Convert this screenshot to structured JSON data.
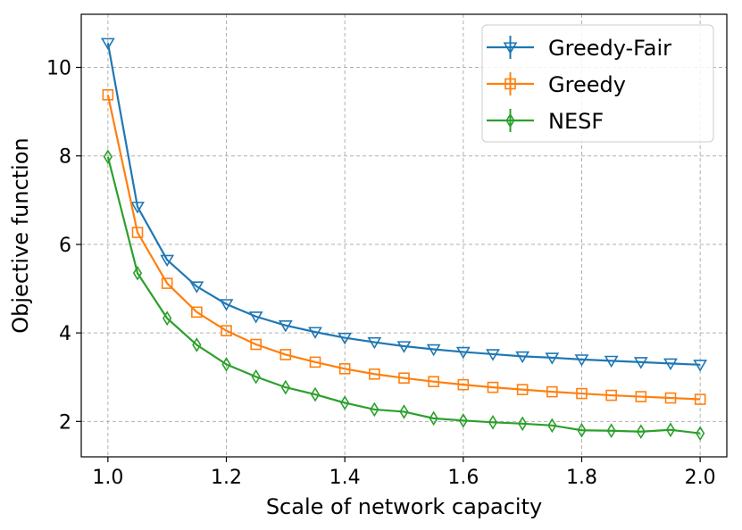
{
  "chart_data": {
    "type": "line",
    "xlabel": "Scale of network capacity",
    "ylabel": "Objective function",
    "xlim": [
      0.955,
      2.045
    ],
    "ylim": [
      1.2,
      11.2
    ],
    "xticks": [
      1.0,
      1.2,
      1.4,
      1.6,
      1.8,
      2.0
    ],
    "xtick_labels": [
      "1.0",
      "1.2",
      "1.4",
      "1.6",
      "1.8",
      "2.0"
    ],
    "yticks": [
      2,
      4,
      6,
      8,
      10
    ],
    "ytick_labels": [
      "2",
      "4",
      "6",
      "8",
      "10"
    ],
    "grid": true,
    "legend_position": "top-right",
    "x": [
      1.0,
      1.05,
      1.1,
      1.15,
      1.2,
      1.25,
      1.3,
      1.35,
      1.4,
      1.45,
      1.5,
      1.55,
      1.6,
      1.65,
      1.7,
      1.75,
      1.8,
      1.85,
      1.9,
      1.95,
      2.0
    ],
    "series": [
      {
        "name": "Greedy-Fair",
        "color": "#1f77b4",
        "marker": "triangle-down",
        "values": [
          10.55,
          6.85,
          5.65,
          5.05,
          4.65,
          4.37,
          4.17,
          4.02,
          3.89,
          3.79,
          3.7,
          3.63,
          3.57,
          3.52,
          3.47,
          3.44,
          3.4,
          3.37,
          3.34,
          3.31,
          3.28
        ]
      },
      {
        "name": "Greedy",
        "color": "#ff7f0e",
        "marker": "square",
        "values": [
          9.38,
          6.27,
          5.12,
          4.47,
          4.05,
          3.74,
          3.51,
          3.34,
          3.19,
          3.07,
          2.98,
          2.9,
          2.83,
          2.77,
          2.72,
          2.67,
          2.63,
          2.59,
          2.56,
          2.53,
          2.5
        ]
      },
      {
        "name": "NESF",
        "color": "#2ca02c",
        "marker": "diamond",
        "values": [
          7.98,
          5.35,
          4.33,
          3.73,
          3.29,
          3.01,
          2.77,
          2.61,
          2.42,
          2.27,
          2.22,
          2.07,
          2.02,
          1.98,
          1.95,
          1.91,
          1.8,
          1.79,
          1.77,
          1.81,
          1.73
        ]
      }
    ]
  }
}
